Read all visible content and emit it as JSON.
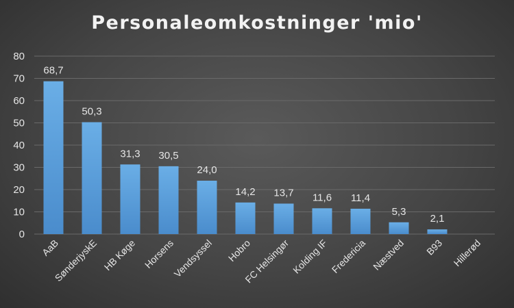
{
  "chart_data": {
    "type": "bar",
    "title": "Personaleomkostninger 'mio'",
    "categories": [
      "AaB",
      "SønderjyskE",
      "HB Køge",
      "Horsens",
      "Vendsyssel",
      "Hobro",
      "FC Helsingør",
      "Kolding IF",
      "Fredericia",
      "Næstved",
      "B93",
      "Hillerød"
    ],
    "values": [
      68.7,
      50.3,
      31.3,
      30.5,
      24.0,
      14.2,
      13.7,
      11.6,
      11.4,
      5.3,
      2.1,
      0
    ],
    "data_labels": [
      "68,7",
      "50,3",
      "31,3",
      "30,5",
      "24,0",
      "14,2",
      "13,7",
      "11,6",
      "11,4",
      "5,3",
      "2,1",
      ""
    ],
    "ylim": [
      0,
      80
    ],
    "yticks": [
      0,
      10,
      20,
      30,
      40,
      50,
      60,
      70,
      80
    ],
    "grid": true,
    "legend": "none",
    "bar_color": "#5b9bd5"
  }
}
